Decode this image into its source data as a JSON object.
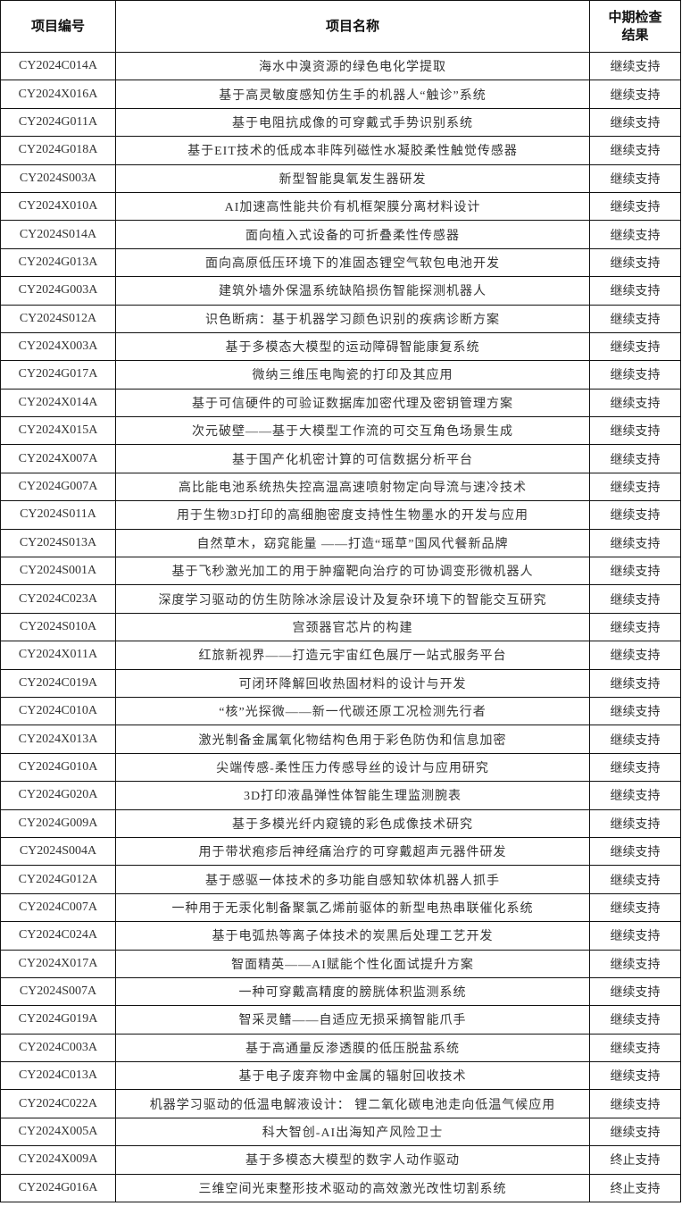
{
  "table": {
    "headers": [
      "项目编号",
      "项目名称",
      "中期检查\n结果"
    ],
    "header_result_line1": "中期检查",
    "header_result_line2": "结果",
    "rows": [
      [
        "CY2024C014A",
        "海水中溴资源的绿色电化学提取",
        "继续支持"
      ],
      [
        "CY2024X016A",
        "基于高灵敏度感知仿生手的机器人“触诊”系统",
        "继续支持"
      ],
      [
        "CY2024G011A",
        "基于电阻抗成像的可穿戴式手势识别系统",
        "继续支持"
      ],
      [
        "CY2024G018A",
        "基于EIT技术的低成本非阵列磁性水凝胶柔性触觉传感器",
        "继续支持"
      ],
      [
        "CY2024S003A",
        "新型智能臭氧发生器研发",
        "继续支持"
      ],
      [
        "CY2024X010A",
        "AI加速高性能共价有机框架膜分离材料设计",
        "继续支持"
      ],
      [
        "CY2024S014A",
        "面向植入式设备的可折叠柔性传感器",
        "继续支持"
      ],
      [
        "CY2024G013A",
        "面向高原低压环境下的准固态锂空气软包电池开发",
        "继续支持"
      ],
      [
        "CY2024G003A",
        "建筑外墙外保温系统缺陷损伤智能探测机器人",
        "继续支持"
      ],
      [
        "CY2024S012A",
        "识色断病：基于机器学习颜色识别的疾病诊断方案",
        "继续支持"
      ],
      [
        "CY2024X003A",
        "基于多模态大模型的运动障碍智能康复系统",
        "继续支持"
      ],
      [
        "CY2024G017A",
        "微纳三维压电陶瓷的打印及其应用",
        "继续支持"
      ],
      [
        "CY2024X014A",
        "基于可信硬件的可验证数据库加密代理及密钥管理方案",
        "继续支持"
      ],
      [
        "CY2024X015A",
        "次元破壁——基于大模型工作流的可交互角色场景生成",
        "继续支持"
      ],
      [
        "CY2024X007A",
        "基于国产化机密计算的可信数据分析平台",
        "继续支持"
      ],
      [
        "CY2024G007A",
        "高比能电池系统热失控高温高速喷射物定向导流与速冷技术",
        "继续支持"
      ],
      [
        "CY2024S011A",
        "用于生物3D打印的高细胞密度支持性生物墨水的开发与应用",
        "继续支持"
      ],
      [
        "CY2024S013A",
        "自然草木，窈窕能量 ——打造“瑶草”国风代餐新品牌",
        "继续支持"
      ],
      [
        "CY2024S001A",
        "基于飞秒激光加工的用于肿瘤靶向治疗的可协调变形微机器人",
        "继续支持"
      ],
      [
        "CY2024C023A",
        "深度学习驱动的仿生防除冰涂层设计及复杂环境下的智能交互研究",
        "继续支持"
      ],
      [
        "CY2024S010A",
        "宫颈器官芯片的构建",
        "继续支持"
      ],
      [
        "CY2024X011A",
        "红旅新视界——打造元宇宙红色展厅一站式服务平台",
        "继续支持"
      ],
      [
        "CY2024C019A",
        "可闭环降解回收热固材料的设计与开发",
        "继续支持"
      ],
      [
        "CY2024C010A",
        "“核”光探微——新一代碳还原工况检测先行者",
        "继续支持"
      ],
      [
        "CY2024X013A",
        "激光制备金属氧化物结构色用于彩色防伪和信息加密",
        "继续支持"
      ],
      [
        "CY2024G010A",
        "尖端传感-柔性压力传感导丝的设计与应用研究",
        "继续支持"
      ],
      [
        "CY2024G020A",
        "3D打印液晶弹性体智能生理监测腕表",
        "继续支持"
      ],
      [
        "CY2024G009A",
        "基于多模光纤内窥镜的彩色成像技术研究",
        "继续支持"
      ],
      [
        "CY2024S004A",
        "用于带状疱疹后神经痛治疗的可穿戴超声元器件研发",
        "继续支持"
      ],
      [
        "CY2024G012A",
        "基于感驱一体技术的多功能自感知软体机器人抓手",
        "继续支持"
      ],
      [
        "CY2024C007A",
        "一种用于无汞化制备聚氯乙烯前驱体的新型电热串联催化系统",
        "继续支持"
      ],
      [
        "CY2024C024A",
        "基于电弧热等离子体技术的炭黑后处理工艺开发",
        "继续支持"
      ],
      [
        "CY2024X017A",
        "智面精英——AI赋能个性化面试提升方案",
        "继续支持"
      ],
      [
        "CY2024S007A",
        "一种可穿戴高精度的膀胱体积监测系统",
        "继续支持"
      ],
      [
        "CY2024G019A",
        "智采灵鳍——自适应无损采摘智能爪手",
        "继续支持"
      ],
      [
        "CY2024C003A",
        "基于高通量反渗透膜的低压脱盐系统",
        "继续支持"
      ],
      [
        "CY2024C013A",
        "基于电子废弃物中金属的辐射回收技术",
        "继续支持"
      ],
      [
        "CY2024C022A",
        "机器学习驱动的低温电解液设计： 锂二氧化碳电池走向低温气候应用",
        "继续支持"
      ],
      [
        "CY2024X005A",
        "科大智创-AI出海知产风险卫士",
        "继续支持"
      ],
      [
        "CY2024X009A",
        "基于多模态大模型的数字人动作驱动",
        "终止支持"
      ],
      [
        "CY2024G016A",
        "三维空间光束整形技术驱动的高效激光改性切割系统",
        "终止支持"
      ]
    ]
  }
}
